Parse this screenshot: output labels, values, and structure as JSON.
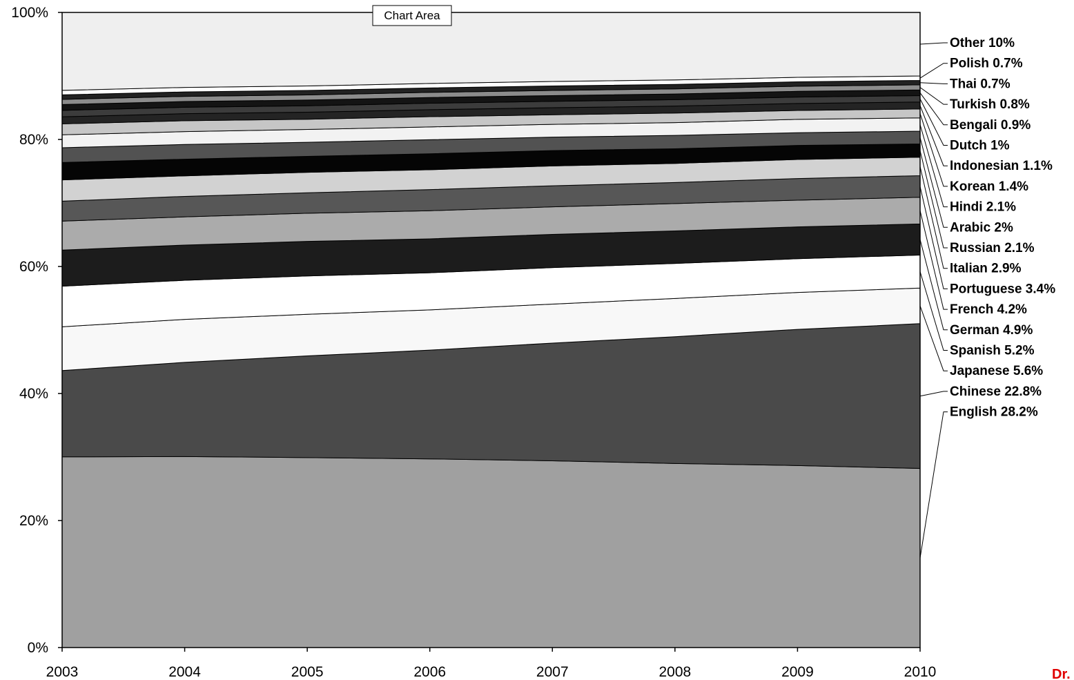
{
  "chart_area_label": "Chart Area",
  "credit": "Dr.",
  "chart_data": {
    "type": "area",
    "stacked": "percent",
    "title": "",
    "xlabel": "",
    "ylabel": "",
    "x": [
      "2003",
      "2004",
      "2005",
      "2006",
      "2007",
      "2008",
      "2009",
      "2010"
    ],
    "ylim": [
      0,
      100
    ],
    "y_ticks": [
      "0%",
      "20%",
      "40%",
      "60%",
      "80%",
      "100%"
    ],
    "legend_position": "right",
    "series": [
      {
        "name": "English",
        "legend": "English 28.2%",
        "color": "#a0a0a0",
        "values": [
          29.6,
          29.8,
          29.7,
          29.5,
          29.2,
          28.9,
          28.6,
          28.2
        ]
      },
      {
        "name": "Chinese",
        "legend": "Chinese 22.8%",
        "color": "#4a4a4a",
        "values": [
          13.4,
          14.7,
          15.9,
          17.0,
          18.4,
          19.9,
          21.4,
          22.8
        ]
      },
      {
        "name": "Japanese",
        "legend": "Japanese 5.6%",
        "color": "#f8f8f8",
        "values": [
          6.8,
          6.7,
          6.5,
          6.3,
          6.1,
          6.0,
          5.8,
          5.6
        ]
      },
      {
        "name": "Spanish",
        "legend": "Spanish 5.2%",
        "color": "#ffffff",
        "values": [
          6.3,
          6.1,
          6.0,
          5.8,
          5.7,
          5.5,
          5.3,
          5.2
        ]
      },
      {
        "name": "German",
        "legend": "German 4.9%",
        "color": "#1c1c1c",
        "values": [
          5.6,
          5.5,
          5.4,
          5.3,
          5.2,
          5.1,
          5.0,
          4.9
        ]
      },
      {
        "name": "French",
        "legend": "French 4.2%",
        "color": "#ababab",
        "values": [
          4.5,
          4.4,
          4.4,
          4.4,
          4.3,
          4.3,
          4.2,
          4.2
        ]
      },
      {
        "name": "Portuguese",
        "legend": "Portuguese 3.4%",
        "color": "#575757",
        "values": [
          3.1,
          3.2,
          3.2,
          3.3,
          3.3,
          3.3,
          3.4,
          3.4
        ]
      },
      {
        "name": "Italian",
        "legend": "Italian 2.9%",
        "color": "#d2d2d2",
        "values": [
          3.3,
          3.2,
          3.2,
          3.1,
          3.1,
          3.0,
          3.0,
          2.9
        ]
      },
      {
        "name": "Russian",
        "legend": "Russian 2.1%",
        "color": "#050505",
        "values": [
          2.7,
          2.6,
          2.5,
          2.5,
          2.4,
          2.3,
          2.2,
          2.1
        ]
      },
      {
        "name": "Arabic",
        "legend": "Arabic 2%",
        "color": "#525252",
        "values": [
          2.3,
          2.3,
          2.2,
          2.2,
          2.1,
          2.1,
          2.0,
          2.0
        ]
      },
      {
        "name": "Hindi",
        "legend": "Hindi 2.1%",
        "color": "#f2f2f2",
        "values": [
          2.0,
          2.0,
          2.0,
          2.0,
          2.0,
          2.0,
          2.1,
          2.1
        ]
      },
      {
        "name": "Korean",
        "legend": "Korean 1.4%",
        "color": "#c6c6c6",
        "values": [
          1.7,
          1.7,
          1.6,
          1.6,
          1.5,
          1.5,
          1.4,
          1.4
        ]
      },
      {
        "name": "Indonesian",
        "legend": "Indonesian 1.1%",
        "color": "#242424",
        "values": [
          1.1,
          1.1,
          1.1,
          1.1,
          1.1,
          1.1,
          1.1,
          1.1
        ]
      },
      {
        "name": "Dutch",
        "legend": "Dutch 1%",
        "color": "#3c3c3c",
        "values": [
          1.0,
          1.0,
          1.0,
          1.0,
          1.0,
          1.0,
          1.0,
          1.0
        ]
      },
      {
        "name": "Bengali",
        "legend": "Bengali 0.9%",
        "color": "#141414",
        "values": [
          0.9,
          0.9,
          0.9,
          0.9,
          0.9,
          0.9,
          0.9,
          0.9
        ]
      },
      {
        "name": "Turkish",
        "legend": "Turkish 0.8%",
        "color": "#8c8c8c",
        "values": [
          0.8,
          0.8,
          0.8,
          0.8,
          0.8,
          0.8,
          0.8,
          0.8
        ]
      },
      {
        "name": "Thai",
        "legend": "Thai 0.7%",
        "color": "#222222",
        "values": [
          0.7,
          0.7,
          0.7,
          0.7,
          0.7,
          0.7,
          0.7,
          0.7
        ]
      },
      {
        "name": "Polish",
        "legend": "Polish 0.7%",
        "color": "#ffffff",
        "values": [
          0.7,
          0.7,
          0.7,
          0.7,
          0.7,
          0.7,
          0.7,
          0.7
        ]
      },
      {
        "name": "Other",
        "legend": "Other 10%",
        "color": "#efefef",
        "values": [
          12.1,
          11.7,
          11.5,
          11.1,
          10.8,
          10.6,
          10.2,
          10.0
        ]
      }
    ]
  }
}
